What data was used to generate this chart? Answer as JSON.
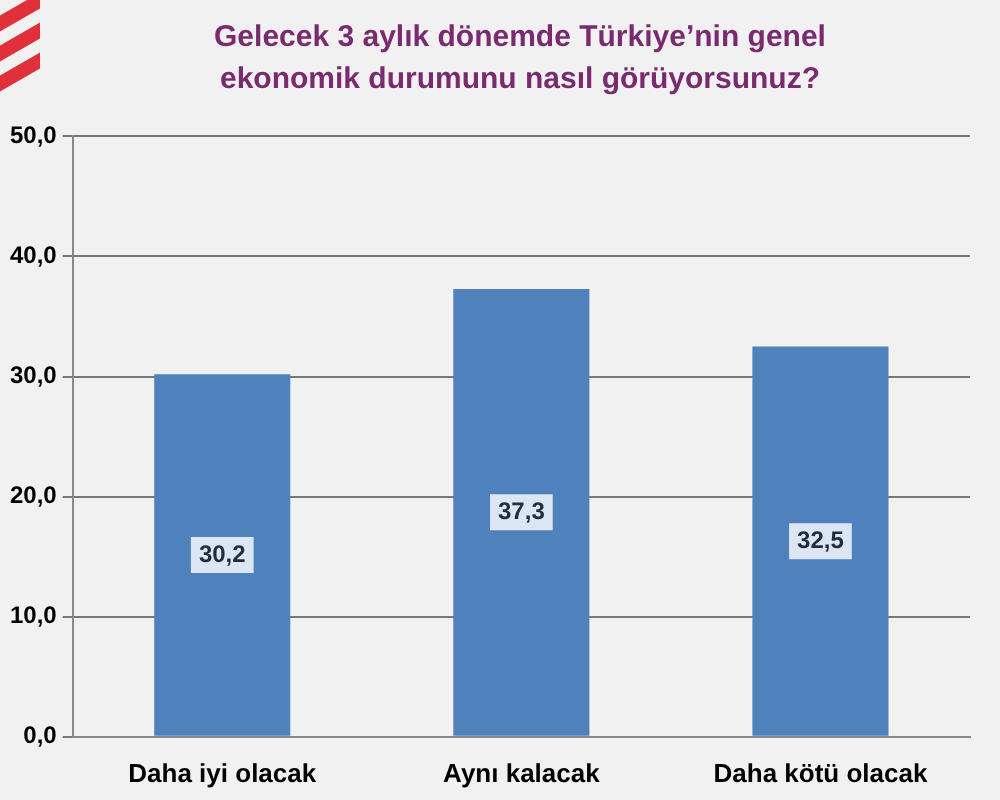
{
  "chart_data": {
    "type": "bar",
    "title": "Gelecek 3 aylık dönemde Türkiye’nin genel ekonomik durumunu nasıl görüyorsunuz?",
    "categories": [
      "Daha iyi olacak",
      "Aynı kalacak",
      "Daha kötü olacak"
    ],
    "values": [
      30.2,
      37.3,
      32.5
    ],
    "value_labels": [
      "30,2",
      "37,3",
      "32,5"
    ],
    "color": "#4f81bd",
    "ylim": [
      0,
      50
    ],
    "yticks": [
      {
        "value": 0,
        "label": "0,0"
      },
      {
        "value": 10,
        "label": "10,0"
      },
      {
        "value": 20,
        "label": "20,0"
      },
      {
        "value": 30,
        "label": "30,0"
      },
      {
        "value": 40,
        "label": "40,0"
      },
      {
        "value": 50,
        "label": "50,0"
      }
    ],
    "grid": "y"
  }
}
